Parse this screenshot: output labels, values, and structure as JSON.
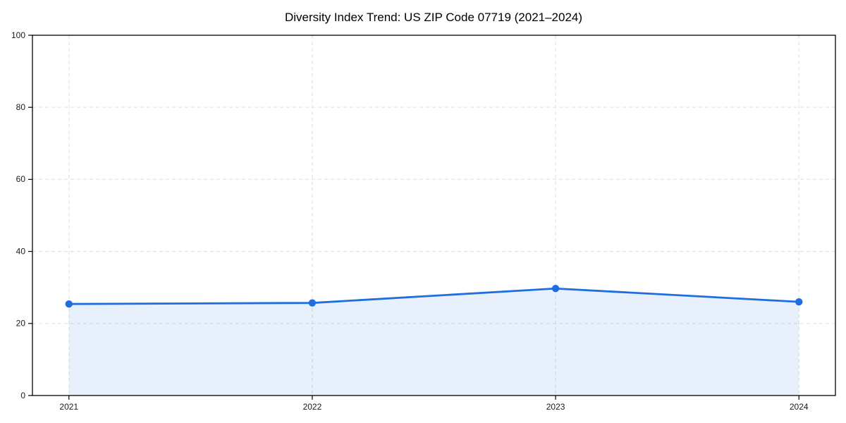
{
  "chart_data": {
    "type": "area",
    "title": "Diversity Index Trend: US ZIP Code 07719 (2021–2024)",
    "series_name": "Diversity Index",
    "x": [
      2021,
      2022,
      2023,
      2024
    ],
    "x_tick_labels": [
      "2021",
      "2022",
      "2023",
      "2024"
    ],
    "values": [
      25.4,
      25.7,
      29.7,
      26.0
    ],
    "xlabel": "",
    "ylabel": "",
    "xlim": [
      2020.85,
      2024.15
    ],
    "ylim": [
      0,
      100
    ],
    "yticks": [
      0,
      20,
      40,
      60,
      80,
      100
    ],
    "y_tick_labels": [
      "0",
      "20",
      "40",
      "60",
      "80",
      "100"
    ],
    "grid": "dashed",
    "legend": false,
    "marker": "circle",
    "colors": {
      "line": "#1E6EE0",
      "fill": "#1E6EE0",
      "fill_opacity": 0.1,
      "gridline": "#E3E3E3",
      "axis": "#000000",
      "tick_label": "#1A1A1A",
      "title": "#000000",
      "background": "#FFFFFF"
    }
  }
}
